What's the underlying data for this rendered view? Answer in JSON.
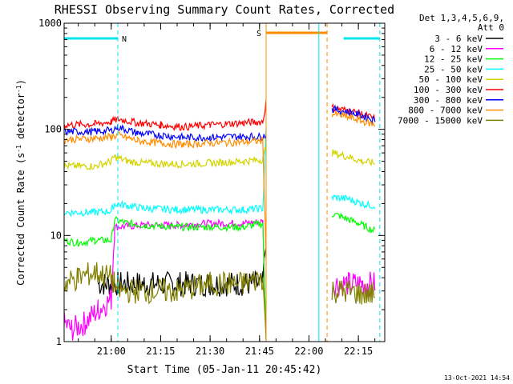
{
  "chart_data": {
    "type": "line",
    "title": "RHESSI Observing Summary Count Rates, Corrected",
    "xlabel": "Start Time (05-Jan-11 20:45:42)",
    "ylabel_prefix": "Corrected Count Rate (s",
    "ylabel_mid": " detector",
    "ylabel_suffix": ")",
    "ylabel_sup": "-1",
    "yscale": "log",
    "ylim": [
      1,
      1000
    ],
    "xlim": [
      "20:45:42",
      "22:23:00"
    ],
    "xticks": [
      "21:00",
      "21:15",
      "21:30",
      "21:45",
      "22:00",
      "22:15"
    ],
    "yticks": [
      "1",
      "10",
      "100",
      "1000"
    ],
    "grid": false,
    "legend_position": "right",
    "legend_header": [
      "Det 1,3,4,5,6,9,",
      "Att 0"
    ],
    "footer_date": "13-Oct-2021 14:54",
    "flags": [
      {
        "label": "N",
        "color": "#00e5ee",
        "segments": [
          [
            "20:45:42",
            "21:02:00"
          ],
          [
            "22:10:30",
            "22:21:30"
          ]
        ]
      },
      {
        "label": "S",
        "color": "#ff8c00",
        "segments": [
          [
            "21:47:00",
            "22:05:30"
          ]
        ]
      }
    ],
    "boundaries": [
      {
        "time": "21:02:00",
        "color": "#00e5ee",
        "style": "dashed"
      },
      {
        "time": "21:47:00",
        "color": "#ff8c00",
        "style": "solid"
      },
      {
        "time": "22:03:00",
        "color": "#00e5ee",
        "style": "solid"
      },
      {
        "time": "22:05:30",
        "color": "#ff8c00",
        "style": "dashed"
      },
      {
        "time": "22:21:30",
        "color": "#00e5ee",
        "style": "dashed"
      }
    ],
    "series": [
      {
        "name": "3 - 6 keV",
        "color": "#000000",
        "points": [
          [
            "20:56:00",
            3.5
          ],
          [
            "20:58:00",
            3.5
          ],
          [
            "21:02:00",
            3.5
          ],
          [
            "21:10:00",
            3.5
          ],
          [
            "21:20:00",
            3.5
          ],
          [
            "21:30:00",
            3.5
          ],
          [
            "21:40:00",
            3.5
          ],
          [
            "21:46:00",
            3.5
          ],
          [
            "21:47:00",
            10
          ]
        ]
      },
      {
        "name": "6 - 12 keV",
        "color": "#ff00ff",
        "points": [
          [
            "20:45:42",
            1.5
          ],
          [
            "20:48:00",
            1.3
          ],
          [
            "20:52:00",
            1.5
          ],
          [
            "20:56:00",
            2.0
          ],
          [
            "21:00:00",
            2.5
          ],
          [
            "21:01:00",
            12
          ],
          [
            "21:10:00",
            12.5
          ],
          [
            "21:20:00",
            12.5
          ],
          [
            "21:30:00",
            13
          ],
          [
            "21:40:00",
            13
          ],
          [
            "21:46:00",
            13.5
          ],
          [
            "21:47:00",
            1
          ],
          [
            "22:07:00",
            3.5
          ],
          [
            "22:12:00",
            3.5
          ],
          [
            "22:16:00",
            3.5
          ],
          [
            "22:20:00",
            3.5
          ]
        ]
      },
      {
        "name": "12 - 25 keV",
        "color": "#00ff00",
        "points": [
          [
            "20:45:42",
            9
          ],
          [
            "20:50:00",
            8.5
          ],
          [
            "20:55:00",
            9
          ],
          [
            "21:00:00",
            9
          ],
          [
            "21:01:00",
            14
          ],
          [
            "21:05:00",
            13
          ],
          [
            "21:10:00",
            12.5
          ],
          [
            "21:20:00",
            12
          ],
          [
            "21:30:00",
            12
          ],
          [
            "21:40:00",
            12
          ],
          [
            "21:46:00",
            13
          ],
          [
            "21:47:00",
            1
          ],
          [
            "22:07:00",
            16
          ],
          [
            "22:10:00",
            15
          ],
          [
            "22:15:00",
            13
          ],
          [
            "22:20:00",
            11
          ]
        ]
      },
      {
        "name": "25 - 50 keV",
        "color": "#00ffff",
        "points": [
          [
            "20:45:42",
            16.5
          ],
          [
            "20:55:00",
            16.5
          ],
          [
            "21:00:00",
            17
          ],
          [
            "21:01:00",
            20
          ],
          [
            "21:10:00",
            18
          ],
          [
            "21:20:00",
            17.5
          ],
          [
            "21:30:00",
            17.5
          ],
          [
            "21:40:00",
            17.5
          ],
          [
            "21:46:00",
            18
          ],
          [
            "21:47:00",
            100
          ],
          [
            "22:07:00",
            23
          ],
          [
            "22:12:00",
            22
          ],
          [
            "22:16:00",
            20
          ],
          [
            "22:20:00",
            19
          ]
        ]
      },
      {
        "name": "50 - 100 keV",
        "color": "#d4d400",
        "points": [
          [
            "20:45:42",
            45
          ],
          [
            "20:55:00",
            45
          ],
          [
            "21:00:00",
            50
          ],
          [
            "21:01:00",
            55
          ],
          [
            "21:05:00",
            50
          ],
          [
            "21:10:00",
            48
          ],
          [
            "21:20:00",
            47
          ],
          [
            "21:30:00",
            48
          ],
          [
            "21:40:00",
            50
          ],
          [
            "21:46:00",
            52
          ],
          [
            "21:47:00",
            70
          ],
          [
            "22:07:00",
            60
          ],
          [
            "22:12:00",
            55
          ],
          [
            "22:16:00",
            50
          ],
          [
            "22:20:00",
            48
          ]
        ]
      },
      {
        "name": "100 - 300 keV",
        "color": "#ff0000",
        "points": [
          [
            "20:45:42",
            110
          ],
          [
            "20:55:00",
            112
          ],
          [
            "21:00:00",
            118
          ],
          [
            "21:02:00",
            125
          ],
          [
            "21:08:00",
            115
          ],
          [
            "21:15:00",
            110
          ],
          [
            "21:22:00",
            105
          ],
          [
            "21:30:00",
            110
          ],
          [
            "21:40:00",
            115
          ],
          [
            "21:46:00",
            118
          ],
          [
            "21:47:00",
            180
          ],
          [
            "22:07:00",
            160
          ],
          [
            "22:12:00",
            150
          ],
          [
            "22:16:00",
            140
          ],
          [
            "22:20:00",
            125
          ]
        ]
      },
      {
        "name": "300 - 800 keV",
        "color": "#0000ff",
        "points": [
          [
            "20:45:42",
            95
          ],
          [
            "20:55:00",
            95
          ],
          [
            "21:00:00",
            98
          ],
          [
            "21:02:00",
            105
          ],
          [
            "21:08:00",
            92
          ],
          [
            "21:15:00",
            88
          ],
          [
            "21:22:00",
            84
          ],
          [
            "21:30:00",
            84
          ],
          [
            "21:40:00",
            86
          ],
          [
            "21:46:00",
            85
          ],
          [
            "21:47:00",
            90
          ],
          [
            "22:07:00",
            155
          ],
          [
            "22:12:00",
            145
          ],
          [
            "22:16:00",
            135
          ],
          [
            "22:20:00",
            122
          ]
        ]
      },
      {
        "name": "800 - 7000 keV",
        "color": "#ff8c00",
        "points": [
          [
            "20:45:42",
            80
          ],
          [
            "20:55:00",
            82
          ],
          [
            "21:00:00",
            85
          ],
          [
            "21:02:00",
            88
          ],
          [
            "21:08:00",
            78
          ],
          [
            "21:15:00",
            74
          ],
          [
            "21:22:00",
            72
          ],
          [
            "21:30:00",
            74
          ],
          [
            "21:40:00",
            76
          ],
          [
            "21:46:00",
            78
          ],
          [
            "21:47:00",
            6
          ],
          [
            "22:07:00",
            140
          ],
          [
            "22:12:00",
            130
          ],
          [
            "22:16:00",
            120
          ],
          [
            "22:20:00",
            110
          ]
        ]
      },
      {
        "name": "7000 - 15000 keV",
        "color": "#808000",
        "points": [
          [
            "20:45:42",
            3.5
          ],
          [
            "20:50:00",
            4.0
          ],
          [
            "20:55:00",
            4.5
          ],
          [
            "21:00:00",
            4.0
          ],
          [
            "21:02:00",
            3.0
          ],
          [
            "21:10:00",
            3.0
          ],
          [
            "21:20:00",
            3.0
          ],
          [
            "21:30:00",
            3.5
          ],
          [
            "21:40:00",
            3.5
          ],
          [
            "21:46:00",
            4.0
          ],
          [
            "21:47:00",
            1
          ],
          [
            "22:07:00",
            3.0
          ],
          [
            "22:12:00",
            3.0
          ],
          [
            "22:16:00",
            2.8
          ],
          [
            "22:20:00",
            2.8
          ]
        ]
      }
    ]
  }
}
